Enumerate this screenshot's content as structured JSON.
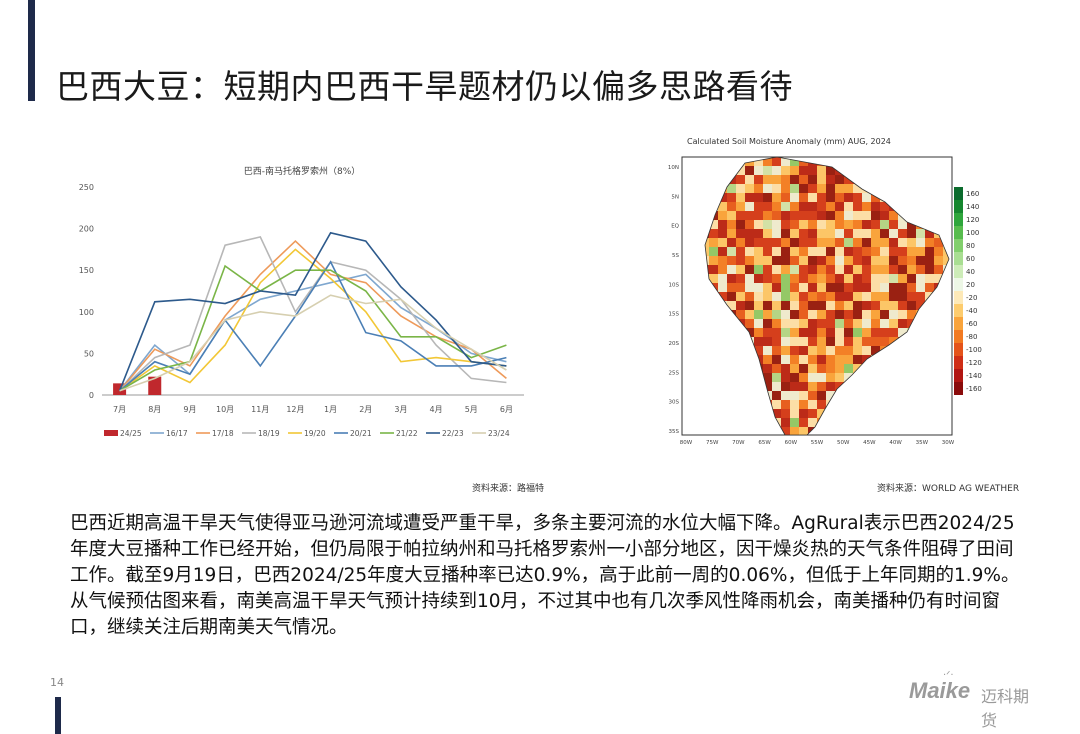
{
  "page": {
    "title": "巴西大豆：短期内巴西干旱题材仍以偏多思路看待",
    "page_number": "14",
    "body": "巴西近期高温干旱天气使得亚马逊河流域遭受严重干旱，多条主要河流的水位大幅下降。AgRural表示巴西2024/25年度大豆播种工作已经开始，但仍局限于帕拉纳州和马托格罗索州一小部分地区，因干燥炎热的天气条件阻碍了田间工作。截至9月19日，巴西2024/25年度大豆播种率已达0.9%，高于此前一周的0.06%，但低于上年同期的1.9%。从气候预估图来看，南美高温干旱天气预计持续到10月，不过其中也有几次季风性降雨机会，南美播种仍有时间窗口，继续关注后期南美天气情况。",
    "source_left": "资料来源：路福特",
    "source_right": "资料来源：WORLD AG WEATHER",
    "logo_text": "Maike",
    "logo_cn": "迈科期货",
    "colors": {
      "accent_bar": "#1e2a4a",
      "logo": "#9a9a9a"
    }
  },
  "chart_data": [
    {
      "type": "line",
      "title": "巴西-南马托格罗索州（8%）",
      "categories": [
        "7月",
        "8月",
        "9月",
        "10月",
        "11月",
        "12月",
        "1月",
        "2月",
        "3月",
        "4月",
        "5月",
        "6月"
      ],
      "ylim": [
        0,
        250
      ],
      "yticks": [
        0,
        50,
        100,
        150,
        200,
        250
      ],
      "grid": false,
      "legend_position": "bottom",
      "series": [
        {
          "name": "24/25",
          "type": "bar",
          "color": "#c0282d",
          "values": [
            14,
            22,
            null,
            null,
            null,
            null,
            null,
            null,
            null,
            null,
            null,
            null
          ]
        },
        {
          "name": "16/17",
          "color": "#7fa7cf",
          "values": [
            5,
            60,
            25,
            90,
            115,
            125,
            135,
            145,
            105,
            80,
            50,
            40
          ]
        },
        {
          "name": "17/18",
          "color": "#ee9a5a",
          "values": [
            5,
            55,
            35,
            95,
            145,
            185,
            145,
            135,
            95,
            70,
            55,
            20
          ]
        },
        {
          "name": "18/19",
          "color": "#b7b7b7",
          "values": [
            5,
            45,
            60,
            180,
            190,
            100,
            160,
            150,
            115,
            60,
            20,
            15
          ]
        },
        {
          "name": "19/20",
          "color": "#f2c736",
          "values": [
            5,
            35,
            15,
            60,
            135,
            175,
            140,
            100,
            40,
            45,
            40,
            35
          ]
        },
        {
          "name": "20/21",
          "color": "#4b7fb5",
          "values": [
            5,
            40,
            25,
            90,
            35,
            95,
            160,
            75,
            65,
            35,
            35,
            45
          ]
        },
        {
          "name": "21/22",
          "color": "#7ab547",
          "values": [
            5,
            30,
            40,
            155,
            125,
            150,
            150,
            125,
            70,
            70,
            45,
            60
          ]
        },
        {
          "name": "22/23",
          "color": "#2d5a8c",
          "values": [
            5,
            112,
            115,
            110,
            125,
            120,
            195,
            185,
            130,
            90,
            40,
            35
          ]
        },
        {
          "name": "23/24",
          "color": "#d6cfb0",
          "values": [
            5,
            20,
            40,
            90,
            100,
            95,
            120,
            110,
            115,
            80,
            55,
            30
          ]
        }
      ]
    },
    {
      "type": "heatmap",
      "title": "Calculated Soil Moisture Anomaly (mm) AUG, 2024",
      "ylabels": [
        "10N",
        "5N",
        "EQ",
        "5S",
        "10S",
        "15S",
        "20S",
        "25S",
        "30S",
        "35S"
      ],
      "xlabels": [
        "80W",
        "75W",
        "70W",
        "65W",
        "60W",
        "55W",
        "50W",
        "45W",
        "40W",
        "35W",
        "30W"
      ],
      "colorbar_labels": [
        "160",
        "140",
        "120",
        "100",
        "80",
        "60",
        "40",
        "20",
        "-20",
        "-40",
        "-60",
        "-80",
        "-100",
        "-120",
        "-140",
        "-160"
      ],
      "colorbar_colors": [
        "#0b6b2d",
        "#16872f",
        "#2fa63c",
        "#58bc4e",
        "#82cf6d",
        "#a9de92",
        "#cdecb8",
        "#edf7e6",
        "#fde9b8",
        "#fdcc6e",
        "#f9a43c",
        "#f27a22",
        "#e4531a",
        "#cf2e16",
        "#b11612",
        "#8a0b0b"
      ]
    }
  ]
}
